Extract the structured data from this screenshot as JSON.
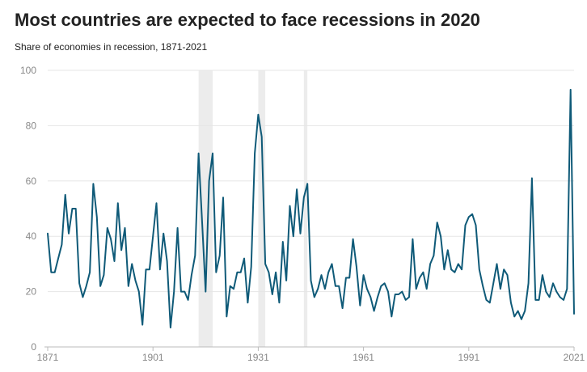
{
  "chart_data": {
    "type": "line",
    "title": "Most countries are expected to face recessions in 2020",
    "subtitle": "Share of economies in recession, 1871-2021",
    "xlabel": "",
    "ylabel": "",
    "xlim": [
      1871,
      2021
    ],
    "ylim": [
      0,
      100
    ],
    "x_ticks": [
      1871,
      1901,
      1931,
      1961,
      1991,
      2021
    ],
    "y_ticks": [
      0,
      20,
      40,
      60,
      80,
      100
    ],
    "grid": true,
    "legend": "none",
    "shaded_periods": [
      [
        1914,
        1918
      ],
      [
        1931,
        1933
      ],
      [
        1944,
        1945
      ]
    ],
    "series": [
      {
        "name": "Share of economies in recession",
        "color": "#0f5a78",
        "x": [
          1871,
          1872,
          1873,
          1874,
          1875,
          1876,
          1877,
          1878,
          1879,
          1880,
          1881,
          1882,
          1883,
          1884,
          1885,
          1886,
          1887,
          1888,
          1889,
          1890,
          1891,
          1892,
          1893,
          1894,
          1895,
          1896,
          1897,
          1898,
          1899,
          1900,
          1901,
          1902,
          1903,
          1904,
          1905,
          1906,
          1907,
          1908,
          1909,
          1910,
          1911,
          1912,
          1913,
          1914,
          1915,
          1916,
          1917,
          1918,
          1919,
          1920,
          1921,
          1922,
          1923,
          1924,
          1925,
          1926,
          1927,
          1928,
          1929,
          1930,
          1931,
          1932,
          1933,
          1934,
          1935,
          1936,
          1937,
          1938,
          1939,
          1940,
          1941,
          1942,
          1943,
          1944,
          1945,
          1946,
          1947,
          1948,
          1949,
          1950,
          1951,
          1952,
          1953,
          1954,
          1955,
          1956,
          1957,
          1958,
          1959,
          1960,
          1961,
          1962,
          1963,
          1964,
          1965,
          1966,
          1967,
          1968,
          1969,
          1970,
          1971,
          1972,
          1973,
          1974,
          1975,
          1976,
          1977,
          1978,
          1979,
          1980,
          1981,
          1982,
          1983,
          1984,
          1985,
          1986,
          1987,
          1988,
          1989,
          1990,
          1991,
          1992,
          1993,
          1994,
          1995,
          1996,
          1997,
          1998,
          1999,
          2000,
          2001,
          2002,
          2003,
          2004,
          2005,
          2006,
          2007,
          2008,
          2009,
          2010,
          2011,
          2012,
          2013,
          2014,
          2015,
          2016,
          2017,
          2018,
          2019,
          2020,
          2021
        ],
        "values": [
          41,
          27,
          27,
          32,
          37,
          55,
          41,
          50,
          50,
          23,
          18,
          22,
          27,
          59,
          47,
          22,
          26,
          43,
          39,
          31,
          52,
          35,
          43,
          22,
          30,
          24,
          20,
          8,
          28,
          28,
          40,
          52,
          28,
          41,
          31,
          7,
          20,
          43,
          20,
          20,
          17,
          26,
          33,
          70,
          45,
          20,
          60,
          70,
          27,
          33,
          54,
          11,
          22,
          21,
          27,
          27,
          32,
          16,
          29,
          70,
          84,
          76,
          30,
          27,
          19,
          27,
          16,
          38,
          24,
          51,
          40,
          57,
          41,
          54,
          59,
          24,
          18,
          21,
          26,
          21,
          27,
          30,
          22,
          22,
          14,
          25,
          25,
          39,
          29,
          15,
          26,
          21,
          18,
          13,
          18,
          22,
          23,
          20,
          11,
          19,
          19,
          20,
          17,
          18,
          39,
          21,
          25,
          27,
          21,
          30,
          33,
          45,
          40,
          28,
          35,
          28,
          27,
          30,
          28,
          44,
          47,
          48,
          44,
          28,
          22,
          17,
          16,
          23,
          30,
          21,
          28,
          26,
          16,
          11,
          13,
          10,
          13,
          23,
          61,
          17,
          17,
          26,
          20,
          18,
          23,
          20,
          18,
          17,
          21,
          93,
          12
        ]
      }
    ]
  }
}
